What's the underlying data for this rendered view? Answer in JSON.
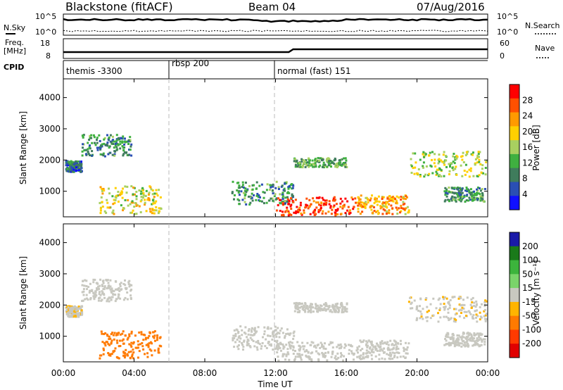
{
  "header": {
    "station": "Blackstone (fitACF)",
    "beam": "Beam 04",
    "date": "07/Aug/2016"
  },
  "sky_panel": {
    "left_label": "N.Sky",
    "right_label": "N.Search",
    "left_ticks": [
      "10^5",
      "10^0"
    ],
    "right_ticks": [
      "10^5",
      "10^0"
    ]
  },
  "freq_panel": {
    "left_label_1": "Freq.",
    "left_label_2": "[MHz]",
    "right_label": "Nave",
    "left_ticks": [
      "18",
      "8"
    ],
    "right_ticks": [
      "60",
      "0"
    ]
  },
  "cpid_panel": {
    "label": "CPID",
    "segments": [
      {
        "start_hour": 0,
        "label": "themis -3300"
      },
      {
        "start_hour": 6,
        "label": "rbsp 200"
      },
      {
        "start_hour": 12,
        "label": "normal (fast) 151"
      }
    ]
  },
  "power_panel": {
    "ylabel": "Slant Range [km]",
    "y_ticks": [
      "1000",
      "2000",
      "3000",
      "4000"
    ],
    "colorbar_label": "Power [dB]",
    "colorbar_ticks": [
      "4",
      "8",
      "12",
      "16",
      "20",
      "24",
      "28"
    ],
    "colorbar_colors": [
      "#1010ff",
      "#2a4fb4",
      "#3f7c5c",
      "#3fb040",
      "#a8d060",
      "#ffd000",
      "#ff9a00",
      "#ff5000",
      "#ff0000"
    ]
  },
  "velocity_panel": {
    "ylabel": "Slant Range [km]",
    "y_ticks": [
      "1000",
      "2000",
      "3000",
      "4000"
    ],
    "colorbar_label": "Velocity [m s⁻¹]",
    "colorbar_ticks": [
      "200",
      "100",
      "50",
      "15",
      "-15",
      "-50",
      "-100",
      "-200"
    ],
    "colorbar_colors": [
      "#1a1aa8",
      "#1a7a1a",
      "#3cb43c",
      "#7ad46a",
      "#c8c8c0",
      "#ffb400",
      "#ff7a00",
      "#ff3a00",
      "#e00000"
    ]
  },
  "x_axis": {
    "label": "Time UT",
    "ticks": [
      "00:00",
      "04:00",
      "08:00",
      "12:00",
      "16:00",
      "20:00",
      "00:00"
    ]
  },
  "chart_data": {
    "type": "heatmap",
    "title": "Blackstone (fitACF)",
    "xlabel": "Time UT",
    "ylabel": "Slant Range [km]",
    "xlim": [
      0,
      24
    ],
    "ylim": [
      180,
      4600
    ],
    "regions": [
      {
        "name": "echo-a",
        "t": [
          0.1,
          1.0
        ],
        "r": [
          1650,
          2000
        ],
        "power_db": 8,
        "velocity": -10
      },
      {
        "name": "echo-b",
        "t": [
          1.0,
          3.8
        ],
        "r": [
          2150,
          2850
        ],
        "power_db": 10,
        "velocity": 0
      },
      {
        "name": "echo-c",
        "t": [
          2.0,
          5.5
        ],
        "r": [
          300,
          1200
        ],
        "power_db": 18,
        "velocity": -50
      },
      {
        "name": "echo-d",
        "t": [
          9.5,
          13.0
        ],
        "r": [
          600,
          1350
        ],
        "power_db": 10,
        "velocity": -5
      },
      {
        "name": "echo-e",
        "t": [
          12.0,
          16.5
        ],
        "r": [
          250,
          850
        ],
        "power_db": 28,
        "velocity": 0
      },
      {
        "name": "echo-f",
        "t": [
          16.5,
          19.5
        ],
        "r": [
          300,
          900
        ],
        "power_db": 22,
        "velocity": 0
      },
      {
        "name": "echo-g",
        "t": [
          13.0,
          16.0
        ],
        "r": [
          1800,
          2100
        ],
        "power_db": 12,
        "velocity": 0
      },
      {
        "name": "echo-h",
        "t": [
          19.5,
          23.9
        ],
        "r": [
          1500,
          2300
        ],
        "power_db": 16,
        "velocity": -10
      },
      {
        "name": "echo-i",
        "t": [
          21.5,
          23.8
        ],
        "r": [
          700,
          1150
        ],
        "power_db": 10,
        "velocity": 5
      }
    ]
  }
}
